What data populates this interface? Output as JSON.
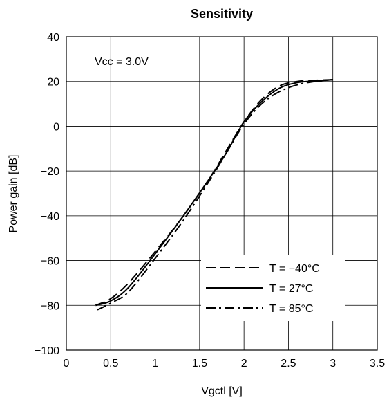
{
  "chart_data": {
    "type": "line",
    "title": "Sensitivity",
    "xlabel": "Vgctl [V]",
    "ylabel": "Power gain [dB]",
    "xlim": [
      0,
      3.5
    ],
    "ylim": [
      -100,
      40
    ],
    "xticks": [
      "0",
      "0.5",
      "1",
      "1.5",
      "2",
      "2.5",
      "3",
      "3.5"
    ],
    "yticks": [
      "40",
      "20",
      "0",
      "−20",
      "−40",
      "−60",
      "−80",
      "−100"
    ],
    "grid": true,
    "legend_position": "bottom-right",
    "annotation": "Vcc = 3.0V",
    "series": [
      {
        "name": "T = −40°C",
        "style": "dashed",
        "x": [
          0.33,
          0.5,
          0.7,
          1.0,
          1.3,
          1.6,
          1.8,
          2.0,
          2.2,
          2.4,
          2.6,
          2.8,
          3.0
        ],
        "y": [
          -80,
          -77,
          -70,
          -56,
          -41,
          -24,
          -11,
          2,
          12,
          18,
          20,
          20.5,
          20.8
        ]
      },
      {
        "name": "T = 27°C",
        "style": "solid",
        "x": [
          0.33,
          0.5,
          0.7,
          1.0,
          1.3,
          1.6,
          1.8,
          2.0,
          2.2,
          2.4,
          2.6,
          2.8,
          3.0
        ],
        "y": [
          -80,
          -78,
          -72,
          -57,
          -41,
          -24,
          -12,
          2,
          11,
          17,
          19.5,
          20.2,
          20.8
        ]
      },
      {
        "name": "T = 85°C",
        "style": "dashdot",
        "x": [
          0.35,
          0.5,
          0.7,
          1.0,
          1.3,
          1.6,
          1.8,
          2.0,
          2.2,
          2.4,
          2.6,
          2.8,
          3.0
        ],
        "y": [
          -82,
          -79,
          -74,
          -59,
          -43,
          -25,
          -12,
          1,
          10,
          15.5,
          18.5,
          20,
          20.8
        ]
      }
    ]
  }
}
